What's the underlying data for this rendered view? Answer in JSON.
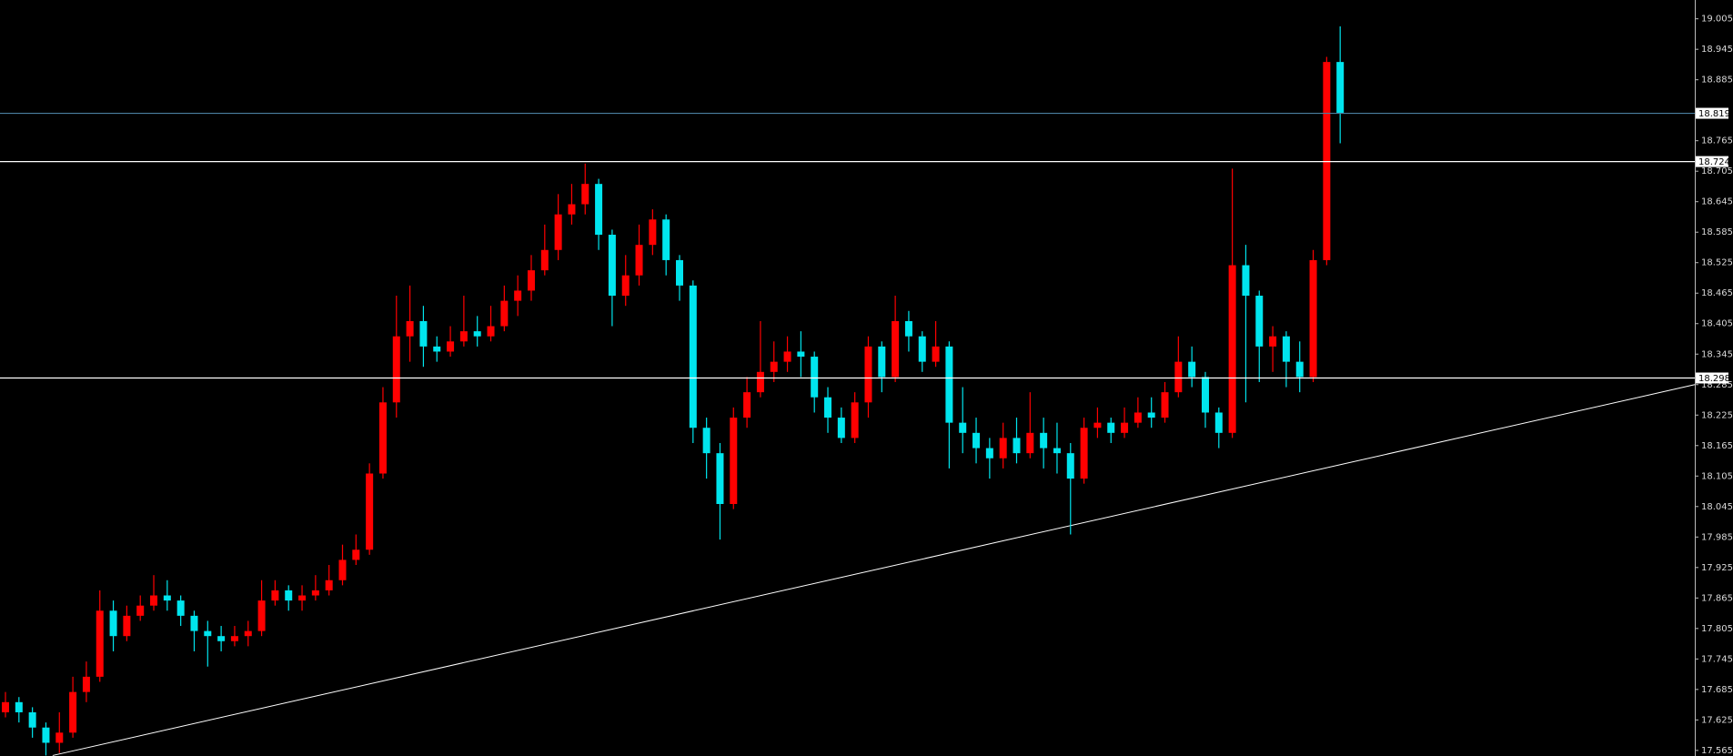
{
  "chart_data": {
    "type": "candlestick",
    "up_color": "#ff0000",
    "down_color": "#00e5ee",
    "ylim": [
      17.554,
      19.042
    ],
    "yticks": [
      19.005,
      18.945,
      18.885,
      18.765,
      18.705,
      18.645,
      18.585,
      18.525,
      18.465,
      18.405,
      18.345,
      18.285,
      18.225,
      18.165,
      18.105,
      18.045,
      17.985,
      17.925,
      17.865,
      17.805,
      17.745,
      17.685,
      17.625,
      17.565
    ],
    "hlines": [
      {
        "value": 18.819,
        "color": "#4a7fa0"
      },
      {
        "value": 18.724,
        "color": "#ffffff"
      },
      {
        "value": 18.298,
        "color": "#ffffff"
      }
    ],
    "trendline": {
      "start": 17.555,
      "end": 18.285,
      "color": "#ffffff"
    },
    "open": [
      17.64,
      17.66,
      17.64,
      17.61,
      17.58,
      17.6,
      17.68,
      17.71,
      17.84,
      17.79,
      17.83,
      17.85,
      17.87,
      17.86,
      17.83,
      17.8,
      17.79,
      17.78,
      17.79,
      17.8,
      17.86,
      17.88,
      17.86,
      17.87,
      17.88,
      17.9,
      17.94,
      17.96,
      18.11,
      18.25,
      18.38,
      18.41,
      18.36,
      18.35,
      18.37,
      18.39,
      18.38,
      18.4,
      18.45,
      18.47,
      18.51,
      18.55,
      18.62,
      18.64,
      18.68,
      18.58,
      18.46,
      18.5,
      18.56,
      18.61,
      18.53,
      18.48,
      18.2,
      18.15,
      18.05,
      18.22,
      18.27,
      18.31,
      18.33,
      18.35,
      18.34,
      18.26,
      18.22,
      18.18,
      18.25,
      18.36,
      18.3,
      18.41,
      18.38,
      18.33,
      18.36,
      18.21,
      18.19,
      18.16,
      18.14,
      18.18,
      18.15,
      18.19,
      18.16,
      18.15,
      18.1,
      18.2,
      18.21,
      18.19,
      18.21,
      18.23,
      18.22,
      18.27,
      18.33,
      18.3,
      18.23,
      18.19,
      18.52,
      18.46,
      18.36,
      18.38,
      18.33,
      18.3,
      18.53,
      18.92
    ],
    "high": [
      17.68,
      17.67,
      17.65,
      17.62,
      17.64,
      17.71,
      17.74,
      17.88,
      17.86,
      17.85,
      17.87,
      17.91,
      17.9,
      17.87,
      17.84,
      17.82,
      17.81,
      17.81,
      17.82,
      17.9,
      17.9,
      17.89,
      17.89,
      17.91,
      17.93,
      17.97,
      17.99,
      18.13,
      18.28,
      18.46,
      18.48,
      18.44,
      18.38,
      18.4,
      18.46,
      18.42,
      18.44,
      18.48,
      18.5,
      18.54,
      18.6,
      18.66,
      18.68,
      18.72,
      18.69,
      18.59,
      18.54,
      18.6,
      18.63,
      18.62,
      18.54,
      18.49,
      18.22,
      18.17,
      18.24,
      18.3,
      18.41,
      18.37,
      18.38,
      18.39,
      18.35,
      18.28,
      18.24,
      18.27,
      18.38,
      18.37,
      18.46,
      18.43,
      18.39,
      18.41,
      18.37,
      18.28,
      18.22,
      18.18,
      18.21,
      18.22,
      18.27,
      18.22,
      18.21,
      18.17,
      18.22,
      18.24,
      18.22,
      18.24,
      18.26,
      18.26,
      18.29,
      18.38,
      18.36,
      18.31,
      18.24,
      18.71,
      18.56,
      18.47,
      18.4,
      18.39,
      18.37,
      18.55,
      18.93,
      18.99
    ],
    "low": [
      17.63,
      17.62,
      17.59,
      17.555,
      17.56,
      17.59,
      17.66,
      17.7,
      17.76,
      17.78,
      17.82,
      17.84,
      17.84,
      17.81,
      17.76,
      17.73,
      17.76,
      17.77,
      17.77,
      17.79,
      17.85,
      17.84,
      17.84,
      17.86,
      17.87,
      17.89,
      17.93,
      17.95,
      18.1,
      18.22,
      18.33,
      18.32,
      18.33,
      18.34,
      18.36,
      18.36,
      18.37,
      18.39,
      18.42,
      18.45,
      18.5,
      18.53,
      18.6,
      18.62,
      18.55,
      18.4,
      18.44,
      18.48,
      18.54,
      18.5,
      18.45,
      18.17,
      18.1,
      17.98,
      18.04,
      18.2,
      18.26,
      18.29,
      18.31,
      18.3,
      18.23,
      18.19,
      18.17,
      18.17,
      18.22,
      18.27,
      18.29,
      18.35,
      18.31,
      18.32,
      18.12,
      18.15,
      18.13,
      18.1,
      18.12,
      18.13,
      18.14,
      18.12,
      18.11,
      17.99,
      18.09,
      18.18,
      18.17,
      18.18,
      18.2,
      18.2,
      18.21,
      18.26,
      18.28,
      18.2,
      18.16,
      18.18,
      18.25,
      18.29,
      18.31,
      18.28,
      18.27,
      18.29,
      18.52,
      18.76
    ],
    "close": [
      17.66,
      17.64,
      17.61,
      17.58,
      17.6,
      17.68,
      17.71,
      17.84,
      17.79,
      17.83,
      17.85,
      17.87,
      17.86,
      17.83,
      17.8,
      17.79,
      17.78,
      17.79,
      17.8,
      17.86,
      17.88,
      17.86,
      17.87,
      17.88,
      17.9,
      17.94,
      17.96,
      18.11,
      18.25,
      18.38,
      18.41,
      18.36,
      18.35,
      18.37,
      18.39,
      18.38,
      18.4,
      18.45,
      18.47,
      18.51,
      18.55,
      18.62,
      18.64,
      18.68,
      18.58,
      18.46,
      18.5,
      18.56,
      18.61,
      18.53,
      18.48,
      18.2,
      18.15,
      18.05,
      18.22,
      18.27,
      18.31,
      18.33,
      18.35,
      18.34,
      18.26,
      18.22,
      18.18,
      18.25,
      18.36,
      18.3,
      18.41,
      18.38,
      18.33,
      18.36,
      18.21,
      18.19,
      18.16,
      18.14,
      18.18,
      18.15,
      18.19,
      18.16,
      18.15,
      18.1,
      18.2,
      18.21,
      18.19,
      18.21,
      18.23,
      18.22,
      18.27,
      18.33,
      18.3,
      18.23,
      18.19,
      18.52,
      18.46,
      18.36,
      18.38,
      18.33,
      18.3,
      18.53,
      18.92,
      18.82
    ]
  }
}
